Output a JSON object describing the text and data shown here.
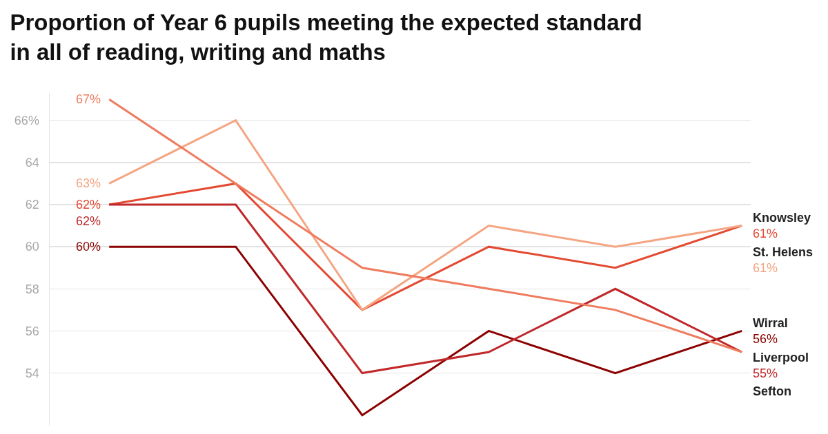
{
  "chart_data": {
    "type": "line",
    "title": "Proportion of Year 6 pupils meeting the expected standard in all of reading, writing and maths",
    "categories": [
      null,
      null,
      null,
      null,
      null,
      null
    ],
    "ylim": [
      51.5,
      67.3
    ],
    "yticks": [
      54,
      56,
      58,
      60,
      62,
      64,
      {
        "value": 66,
        "label": "66%"
      }
    ],
    "tick_labels": "y",
    "grid": "y",
    "legend": false,
    "marker": "none",
    "line_style": "solid",
    "series": [
      {
        "name": "Knowsley",
        "color": "#e34a33",
        "values": [
          62,
          63,
          57,
          60,
          59,
          61
        ],
        "value_labels": [
          "62%",
          null,
          null,
          null,
          null,
          "61%"
        ]
      },
      {
        "name": "St. Helens",
        "color": "#f4a582",
        "values": [
          63,
          66,
          57,
          61,
          60,
          61
        ],
        "value_labels": [
          "63%",
          null,
          null,
          null,
          null,
          "61%"
        ]
      },
      {
        "name": "Wirral",
        "color": "#8b0000",
        "values": [
          60,
          60,
          52,
          56,
          54,
          56
        ],
        "value_labels": [
          "60%",
          null,
          null,
          null,
          null,
          "56%"
        ]
      },
      {
        "name": "Liverpool",
        "color": "#c0282a",
        "values": [
          62,
          62,
          54,
          55,
          58,
          55
        ],
        "value_labels": [
          "62%",
          null,
          null,
          null,
          null,
          "55%"
        ]
      },
      {
        "name": "Sefton",
        "color": "#ef7b5e",
        "values": [
          67,
          63,
          59,
          58,
          57,
          55
        ],
        "value_labels": [
          "67%",
          null,
          null,
          null,
          null,
          null
        ]
      }
    ]
  }
}
